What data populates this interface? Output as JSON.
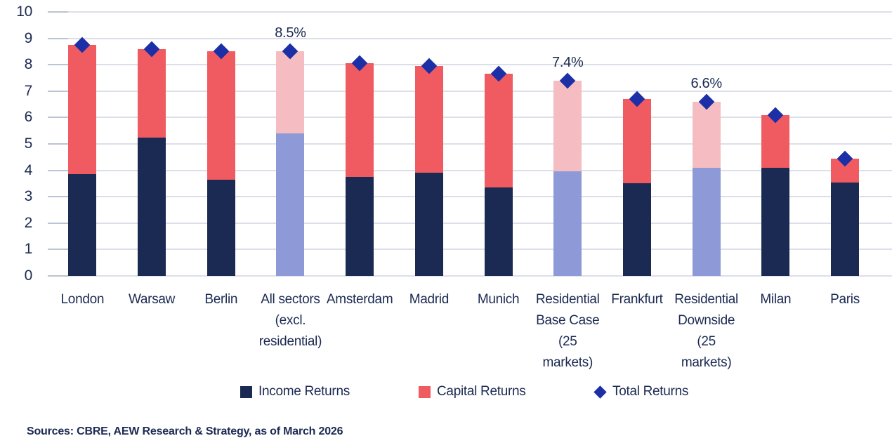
{
  "chart_data": {
    "type": "bar",
    "stacked": true,
    "title": "",
    "xlabel": "",
    "ylabel": "",
    "ylim": [
      0,
      10
    ],
    "yticks": [
      0,
      1,
      2,
      3,
      4,
      5,
      6,
      7,
      8,
      9,
      10
    ],
    "grid": true,
    "legend_position": "bottom",
    "categories": [
      "London",
      "Warsaw",
      "Berlin",
      "All sectors (excl. residential)",
      "Amsterdam",
      "Madrid",
      "Munich",
      "Residential Base Case (25 markets)",
      "Frankfurt",
      "Residential Downside (25 markets)",
      "Milan",
      "Paris"
    ],
    "category_wrap": {
      "3": [
        "All sectors",
        "(excl.",
        "residential)"
      ],
      "7": [
        "Residential",
        "Base Case",
        "(25",
        "markets)"
      ],
      "9": [
        "Residential",
        "Downside",
        "(25",
        "markets)"
      ]
    },
    "series": [
      {
        "name": "Income Returns",
        "marker": "square",
        "values": [
          3.85,
          5.25,
          3.65,
          5.4,
          3.75,
          3.9,
          3.35,
          3.95,
          3.5,
          4.1,
          4.1,
          3.55
        ]
      },
      {
        "name": "Capital Returns",
        "marker": "square",
        "values": [
          4.9,
          3.35,
          4.85,
          3.1,
          4.3,
          4.05,
          4.3,
          3.45,
          3.2,
          2.5,
          2.0,
          0.9
        ]
      },
      {
        "name": "Total Returns",
        "marker": "diamond",
        "values": [
          8.75,
          8.6,
          8.5,
          8.5,
          8.05,
          7.95,
          7.65,
          7.4,
          6.7,
          6.6,
          6.1,
          4.45
        ]
      }
    ],
    "highlight_indices": [
      3,
      7,
      9
    ],
    "annotations": [
      {
        "index": 3,
        "text": "8.5%"
      },
      {
        "index": 7,
        "text": "7.4%"
      },
      {
        "index": 9,
        "text": "6.6%"
      }
    ]
  },
  "colors": {
    "income": "#1b2a52",
    "capital": "#f05b61",
    "income_muted": "#8d9ad7",
    "capital_muted": "#f5bdc1",
    "diamond": "#1c2fa6",
    "gridline": "#dcdfea",
    "tick": "#bcc3d2",
    "text": "#1b2a52"
  },
  "legend": {
    "items": [
      {
        "label": "Income Returns",
        "marker": "square",
        "color": "#1b2a52"
      },
      {
        "label": "Capital Returns",
        "marker": "square",
        "color": "#f05b61"
      },
      {
        "label": "Total Returns",
        "marker": "diamond",
        "color": "#1c2fa6"
      }
    ]
  },
  "source": "Sources: CBRE, AEW Research & Strategy, as of March 2026"
}
